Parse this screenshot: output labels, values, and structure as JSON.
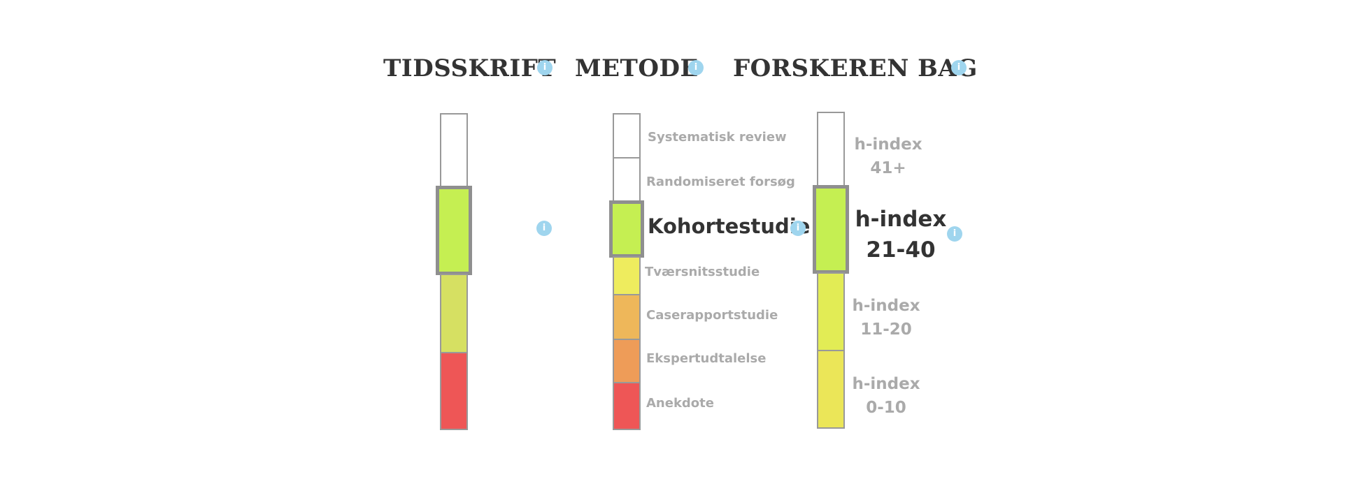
{
  "headers": {
    "tidsskrift": "TIDSSKRIFT",
    "metode": "METODE",
    "forskeren": "FORSKEREN BAG"
  },
  "info_icon_glyph": "i",
  "colors": {
    "white": "#ffffff",
    "lime": "#c5ef52",
    "olive_yellow": "#d6e062",
    "yellow_bright": "#eeec5e",
    "yellow": "#ebe658",
    "yellow_green": "#e2ec55",
    "orange_light": "#eeb75a",
    "orange": "#ee9c58",
    "red": "#ee5656",
    "info_blue": "#9fd5ee"
  },
  "tidsskrift": {
    "selected_index": 1
  },
  "metode": {
    "levels": [
      {
        "label": "Systematisk review"
      },
      {
        "label": "Randomiseret forsøg"
      },
      {
        "label": "Kohortestudie"
      },
      {
        "label": "Tværsnitsstudie"
      },
      {
        "label": "Caserapportstudie"
      },
      {
        "label": "Ekspertudtalelse"
      },
      {
        "label": "Anekdote"
      }
    ],
    "selected_index": 2
  },
  "forskeren": {
    "levels": [
      {
        "line1": "h-index",
        "line2": "41+"
      },
      {
        "line1": "h-index",
        "line2": "21-40"
      },
      {
        "line1": "h-index",
        "line2": "11-20"
      },
      {
        "line1": "h-index",
        "line2": "0-10"
      }
    ],
    "selected_index": 1
  }
}
